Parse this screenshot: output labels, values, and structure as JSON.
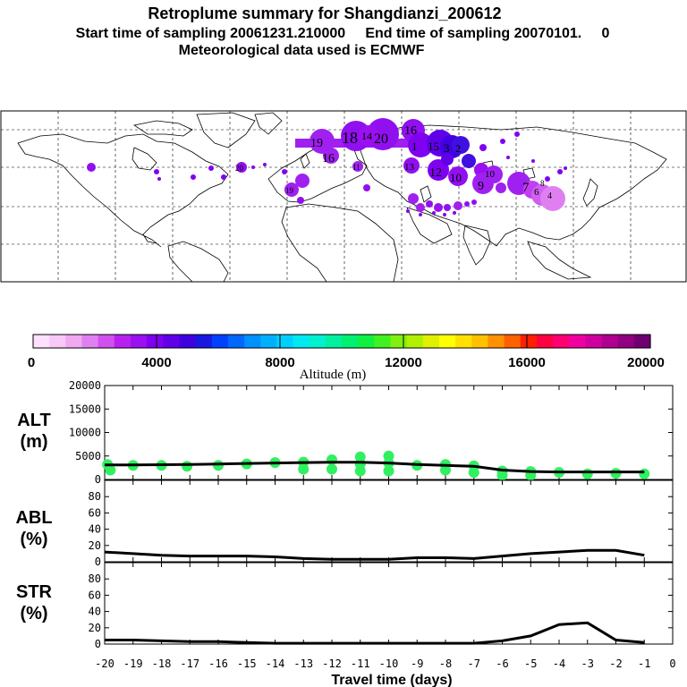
{
  "header": {
    "title": "Retroplume summary for Shangdianzi_200612",
    "subtitle": "Start time of sampling 20061231.210000     End time of sampling 20070101.     0",
    "met_line": "Meteorological data used is ECMWF"
  },
  "colorbar": {
    "ticks": [
      "0",
      "4000",
      "8000",
      "12000",
      "16000",
      "20000"
    ],
    "label": "Altitude (m)",
    "colors": [
      "#ffe0ff",
      "#f8c8f8",
      "#f0a8f0",
      "#e080f0",
      "#d050f0",
      "#b820f0",
      "#9a10f0",
      "#8000f0",
      "#6000e8",
      "#4000e0",
      "#1818e0",
      "#0040ff",
      "#0068ff",
      "#0090ff",
      "#00b0ff",
      "#00d0ff",
      "#00e8f0",
      "#00f0d0",
      "#00f0a0",
      "#00f070",
      "#10f040",
      "#40f020",
      "#80f010",
      "#b0f000",
      "#e0f000",
      "#ffff00",
      "#ffe000",
      "#ffc000",
      "#ff9000",
      "#ff6000",
      "#ff2000",
      "#ff0040",
      "#ff0070",
      "#f000a0",
      "#d000a0",
      "#b00090",
      "#900080",
      "#700070"
    ]
  },
  "map_labels": [
    "19",
    "18",
    "14",
    "20",
    "16",
    "1",
    "15",
    "3",
    "2",
    "16",
    "11",
    "13",
    "12",
    "10",
    "10",
    "9",
    "7",
    "6",
    "8",
    "4",
    "20",
    "19"
  ],
  "chart_data": [
    {
      "type": "line",
      "panel": "ALT",
      "ylabel_line1": "ALT",
      "ylabel_line2": "(m)",
      "ylim": [
        0,
        20000
      ],
      "yticks": [
        "0",
        "5000",
        "10000",
        "15000",
        "20000"
      ],
      "x": [
        -20,
        -19,
        -18,
        -17,
        -16,
        -15,
        -14,
        -13,
        -12,
        -11,
        -10,
        -9,
        -8,
        -7,
        -6,
        -5,
        -4,
        -3,
        -2,
        -1
      ],
      "median": [
        3100,
        3100,
        3150,
        3200,
        3300,
        3400,
        3500,
        3600,
        3650,
        3650,
        3500,
        3200,
        3000,
        2800,
        2000,
        1700,
        1600,
        1600,
        1600,
        1600
      ],
      "marker_points": [
        {
          "x": -19.9,
          "y": 3200
        },
        {
          "x": -19.8,
          "y": 2000
        },
        {
          "x": -19,
          "y": 3000
        },
        {
          "x": -18,
          "y": 3000
        },
        {
          "x": -17.1,
          "y": 2800
        },
        {
          "x": -16,
          "y": 3000
        },
        {
          "x": -15,
          "y": 3300
        },
        {
          "x": -14,
          "y": 3600
        },
        {
          "x": -13,
          "y": 3700
        },
        {
          "x": -13,
          "y": 2200
        },
        {
          "x": -12,
          "y": 4200
        },
        {
          "x": -12,
          "y": 2200
        },
        {
          "x": -11,
          "y": 4800
        },
        {
          "x": -11,
          "y": 3300
        },
        {
          "x": -11,
          "y": 1800
        },
        {
          "x": -10,
          "y": 5000
        },
        {
          "x": -10,
          "y": 3500
        },
        {
          "x": -10,
          "y": 1800
        },
        {
          "x": -9,
          "y": 3000
        },
        {
          "x": -8,
          "y": 3200
        },
        {
          "x": -8,
          "y": 2000
        },
        {
          "x": -7,
          "y": 2900
        },
        {
          "x": -7,
          "y": 1500
        },
        {
          "x": -6,
          "y": 1800
        },
        {
          "x": -6,
          "y": 900
        },
        {
          "x": -5,
          "y": 1700
        },
        {
          "x": -5,
          "y": 900
        },
        {
          "x": -4,
          "y": 1500
        },
        {
          "x": -3,
          "y": 1200
        },
        {
          "x": -2,
          "y": 1300
        },
        {
          "x": -1,
          "y": 1200
        }
      ],
      "marker_color": "#30f060"
    },
    {
      "type": "line",
      "panel": "ABL",
      "ylabel_line1": "ABL",
      "ylabel_line2": "(%)",
      "ylim": [
        0,
        100
      ],
      "yticks": [
        "0",
        "20",
        "40",
        "60",
        "80"
      ],
      "x": [
        -20,
        -19,
        -18,
        -17,
        -16,
        -15,
        -14,
        -13,
        -12,
        -11,
        -10,
        -9,
        -8,
        -7,
        -6,
        -5,
        -4,
        -3,
        -2,
        -1
      ],
      "values": [
        12,
        10,
        8,
        7,
        7,
        7,
        6,
        4,
        3,
        3,
        3,
        5,
        5,
        4,
        7,
        10,
        12,
        14,
        14,
        8
      ]
    },
    {
      "type": "line",
      "panel": "STR",
      "ylabel_line1": "STR",
      "ylabel_line2": "(%)",
      "ylim": [
        0,
        100
      ],
      "yticks": [
        "0",
        "20",
        "40",
        "60",
        "80"
      ],
      "x": [
        -20,
        -19,
        -18,
        -17,
        -16,
        -15,
        -14,
        -13,
        -12,
        -11,
        -10,
        -9,
        -8,
        -7,
        -6,
        -5,
        -4,
        -3,
        -2,
        -1
      ],
      "values": [
        5,
        5,
        4,
        3,
        3,
        2,
        1,
        1,
        1,
        1,
        1,
        1,
        1,
        1,
        4,
        10,
        24,
        26,
        5,
        2
      ]
    }
  ],
  "xaxis": {
    "ticks": [
      "-20",
      "-19",
      "-18",
      "-17",
      "-16",
      "-15",
      "-14",
      "-13",
      "-12",
      "-11",
      "-10",
      "-9",
      "-8",
      "-7",
      "-6",
      "-5",
      "-4",
      "-3",
      "-2",
      "-1",
      "0"
    ],
    "label": "Travel time (days)"
  }
}
